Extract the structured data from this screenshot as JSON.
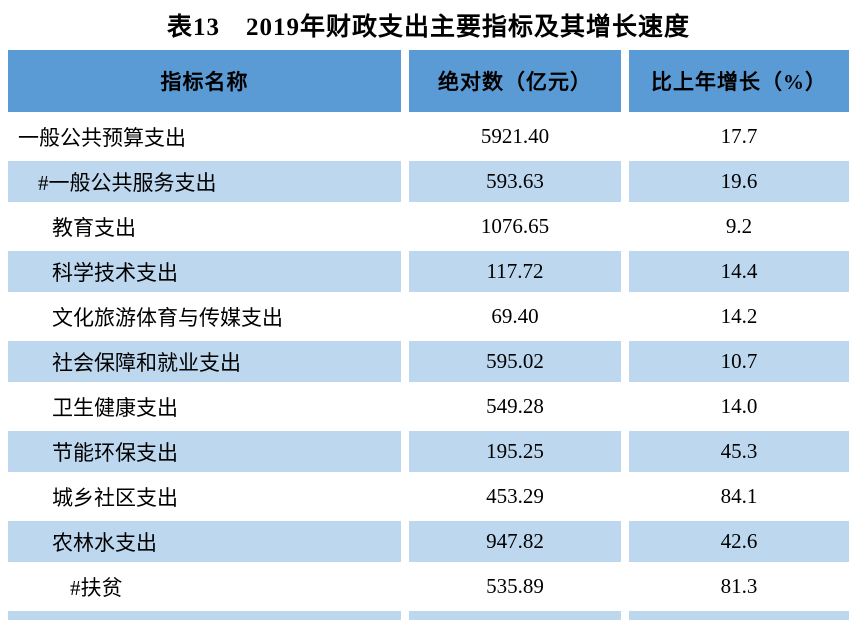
{
  "title": "表13　2019年财政支出主要指标及其增长速度",
  "colors": {
    "header_bg": "#5b9bd5",
    "row_shaded_bg": "#bdd7ee",
    "row_plain_bg": "#ffffff",
    "text": "#000000"
  },
  "table": {
    "headers": [
      "指标名称",
      "绝对数（亿元）",
      "比上年增长（%）"
    ],
    "rows": [
      {
        "label": "一般公共预算支出",
        "absolute": "5921.40",
        "growth": "17.7",
        "indent": 0,
        "shaded": false
      },
      {
        "label": "#一般公共服务支出",
        "absolute": "593.63",
        "growth": "19.6",
        "indent": 1,
        "shaded": true
      },
      {
        "label": "教育支出",
        "absolute": "1076.65",
        "growth": "9.2",
        "indent": 2,
        "shaded": false
      },
      {
        "label": "科学技术支出",
        "absolute": "117.72",
        "growth": "14.4",
        "indent": 2,
        "shaded": true
      },
      {
        "label": "文化旅游体育与传媒支出",
        "absolute": "69.40",
        "growth": "14.2",
        "indent": 2,
        "shaded": false
      },
      {
        "label": "社会保障和就业支出",
        "absolute": "595.02",
        "growth": "10.7",
        "indent": 2,
        "shaded": true
      },
      {
        "label": "卫生健康支出",
        "absolute": "549.28",
        "growth": "14.0",
        "indent": 2,
        "shaded": false
      },
      {
        "label": "节能环保支出",
        "absolute": "195.25",
        "growth": "45.3",
        "indent": 2,
        "shaded": true
      },
      {
        "label": "城乡社区支出",
        "absolute": "453.29",
        "growth": "84.1",
        "indent": 2,
        "shaded": false
      },
      {
        "label": "农林水支出",
        "absolute": "947.82",
        "growth": "42.6",
        "indent": 2,
        "shaded": true
      },
      {
        "label": "#扶贫",
        "absolute": "535.89",
        "growth": "81.3",
        "indent": 3,
        "shaded": false
      }
    ],
    "partial_bottom_row_visible": true
  }
}
